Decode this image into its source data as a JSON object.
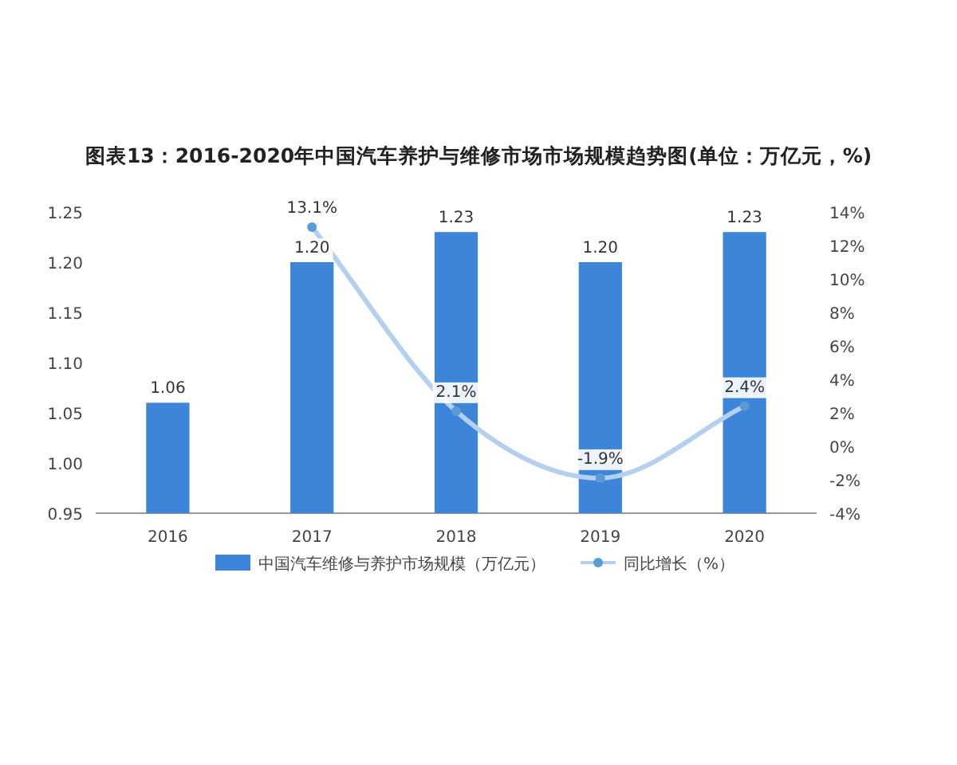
{
  "chart_data": {
    "type": "bar",
    "title": "图表13：2016-2020年中国汽车养护与维修市场市场规模趋势图(单位：万亿元，%)",
    "categories": [
      "2016",
      "2017",
      "2018",
      "2019",
      "2020"
    ],
    "series": [
      {
        "name": "中国汽车维修与养护市场规模（万亿元）",
        "color": "#3d85d8",
        "values": [
          1.06,
          1.2,
          1.23,
          1.2,
          1.23
        ],
        "value_labels": [
          "1.06",
          "1.20",
          "1.23",
          "1.20",
          "1.23"
        ]
      },
      {
        "name": "同比增长（%）",
        "type": "line",
        "axis": "y2",
        "color": "#b4d0ef",
        "marker": "circle",
        "values": [
          null,
          13.1,
          2.1,
          -1.9,
          2.4
        ],
        "value_labels": [
          null,
          "13.1%",
          "2.1%",
          "-1.9%",
          "2.4%"
        ]
      }
    ],
    "ylim": [
      0.95,
      1.25
    ],
    "yticks": [
      {
        "value": 0.95,
        "label": "0.95"
      },
      {
        "value": 1.0,
        "label": "1.00"
      },
      {
        "value": 1.05,
        "label": "1.05"
      },
      {
        "value": 1.1,
        "label": "1.10"
      },
      {
        "value": 1.15,
        "label": "1.15"
      },
      {
        "value": 1.2,
        "label": "1.20"
      },
      {
        "value": 1.25,
        "label": "1.25"
      }
    ],
    "y2lim": [
      -4,
      14
    ],
    "y2ticks": [
      {
        "value": -4,
        "label": "-4%"
      },
      {
        "value": -2,
        "label": "-2%"
      },
      {
        "value": 0,
        "label": "0%"
      },
      {
        "value": 2,
        "label": "2%"
      },
      {
        "value": 4,
        "label": "4%"
      },
      {
        "value": 6,
        "label": "6%"
      },
      {
        "value": 8,
        "label": "8%"
      },
      {
        "value": 10,
        "label": "10%"
      },
      {
        "value": 12,
        "label": "12%"
      },
      {
        "value": 14,
        "label": "14%"
      }
    ],
    "legend": "bottom"
  }
}
